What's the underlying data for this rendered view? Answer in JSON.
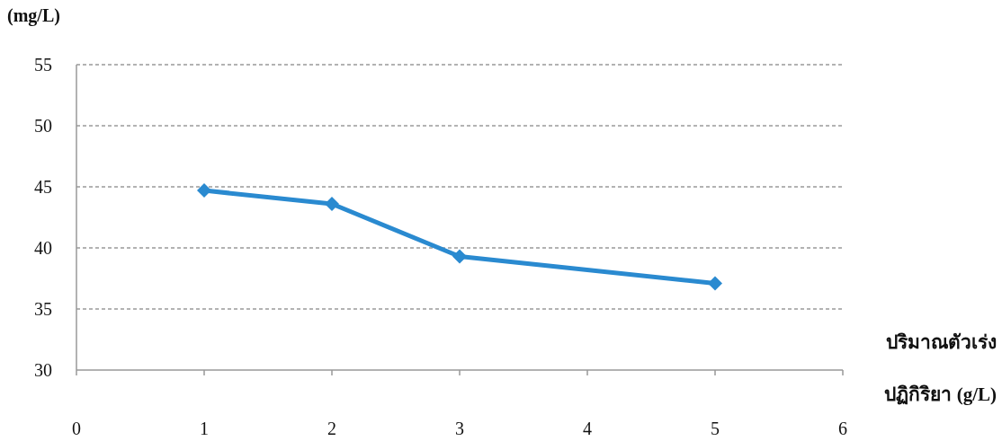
{
  "chart_data": {
    "type": "line",
    "ylabel": "(mg/L)",
    "xlabel": "ปริมาณตัวเร่งปฏิกิริยา (g/L)",
    "x": [
      1,
      2,
      3,
      5
    ],
    "series": [
      {
        "color": "#2a8ad0",
        "values": [
          44.7,
          43.6,
          39.3,
          37.1
        ]
      }
    ],
    "xlim": [
      0,
      6
    ],
    "xticks": [
      0,
      1,
      2,
      3,
      4,
      5,
      6
    ],
    "ylim": [
      30,
      55
    ],
    "yticks": [
      30,
      35,
      40,
      45,
      50,
      55
    ],
    "grid": "y",
    "marker": "diamond",
    "line_style": "solid"
  }
}
